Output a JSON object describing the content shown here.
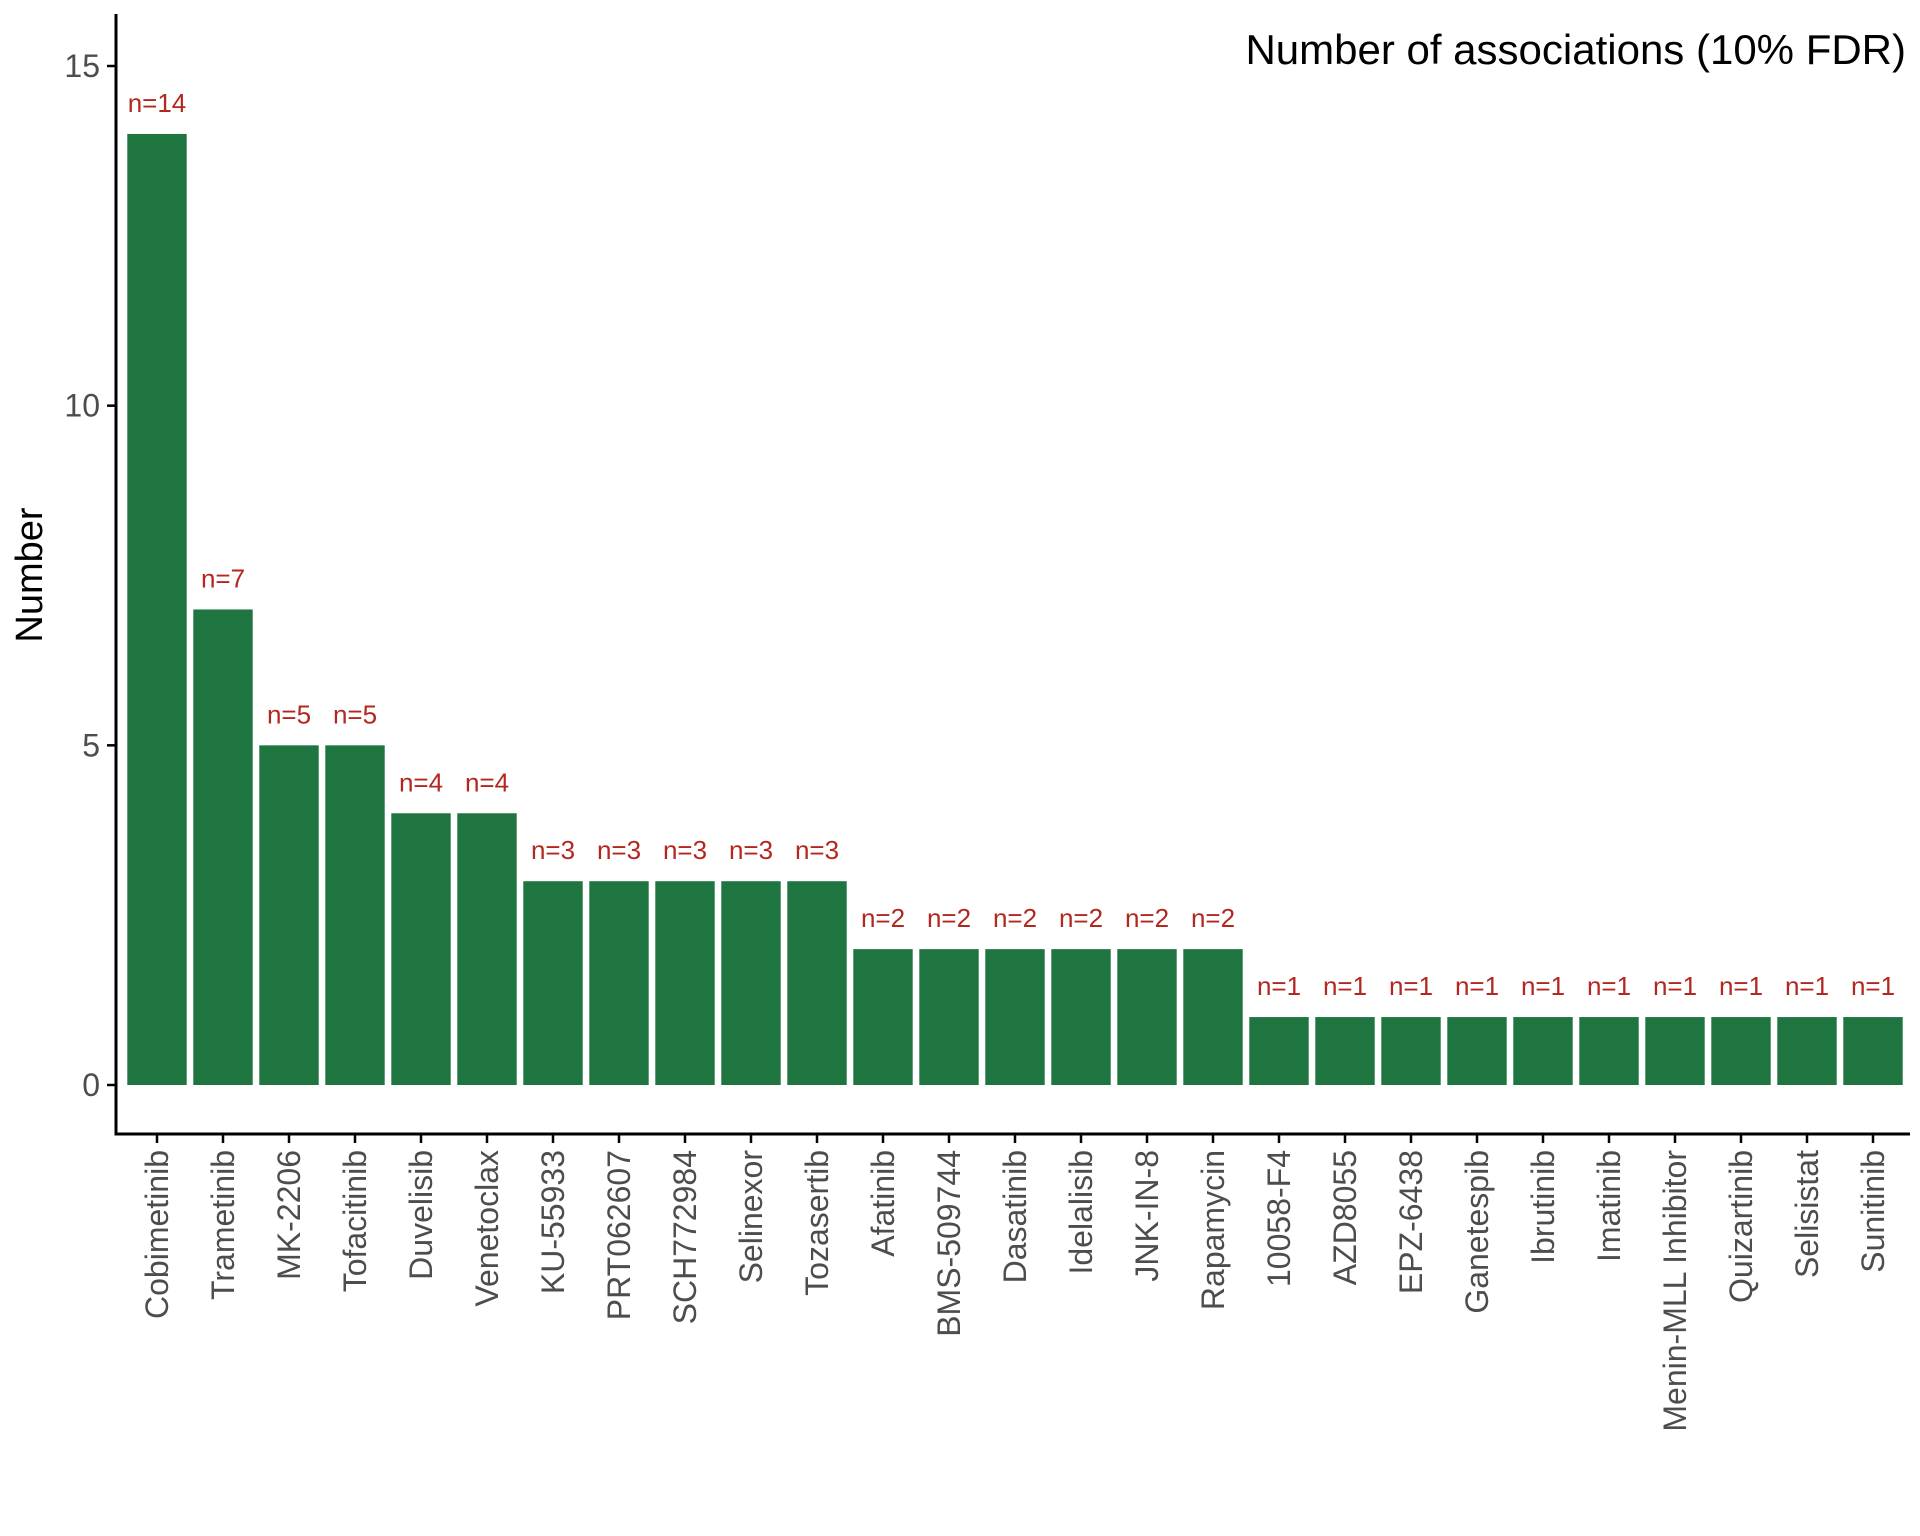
{
  "chart_data": {
    "type": "bar",
    "title": "Number of associations (10% FDR)",
    "xlabel": "",
    "ylabel": "Number",
    "ylim": [
      0,
      15
    ],
    "yticks": [
      0,
      5,
      10,
      15
    ],
    "grid": false,
    "bar_color": "#1e7540",
    "label_color": "#b2271f",
    "categories": [
      "Cobimetinib",
      "Trametinib",
      "MK-2206",
      "Tofacitinib",
      "Duvelisib",
      "Venetoclax",
      "KU-55933",
      "PRT062607",
      "SCH772984",
      "Selinexor",
      "Tozasertib",
      "Afatinib",
      "BMS-509744",
      "Dasatinib",
      "Idelalisib",
      "JNK-IN-8",
      "Rapamycin",
      "10058-F4",
      "AZD8055",
      "EPZ-6438",
      "Ganetespib",
      "Ibrutinib",
      "Imatinib",
      "Menin-MLL Inhibitor",
      "Quizartinib",
      "Selisistat",
      "Sunitinib"
    ],
    "values": [
      14,
      7,
      5,
      5,
      4,
      4,
      3,
      3,
      3,
      3,
      3,
      2,
      2,
      2,
      2,
      2,
      2,
      1,
      1,
      1,
      1,
      1,
      1,
      1,
      1,
      1,
      1
    ],
    "data_labels": [
      "n=14",
      "n=7",
      "n=5",
      "n=5",
      "n=4",
      "n=4",
      "n=3",
      "n=3",
      "n=3",
      "n=3",
      "n=3",
      "n=2",
      "n=2",
      "n=2",
      "n=2",
      "n=2",
      "n=2",
      "n=1",
      "n=1",
      "n=1",
      "n=1",
      "n=1",
      "n=1",
      "n=1",
      "n=1",
      "n=1",
      "n=1"
    ]
  }
}
